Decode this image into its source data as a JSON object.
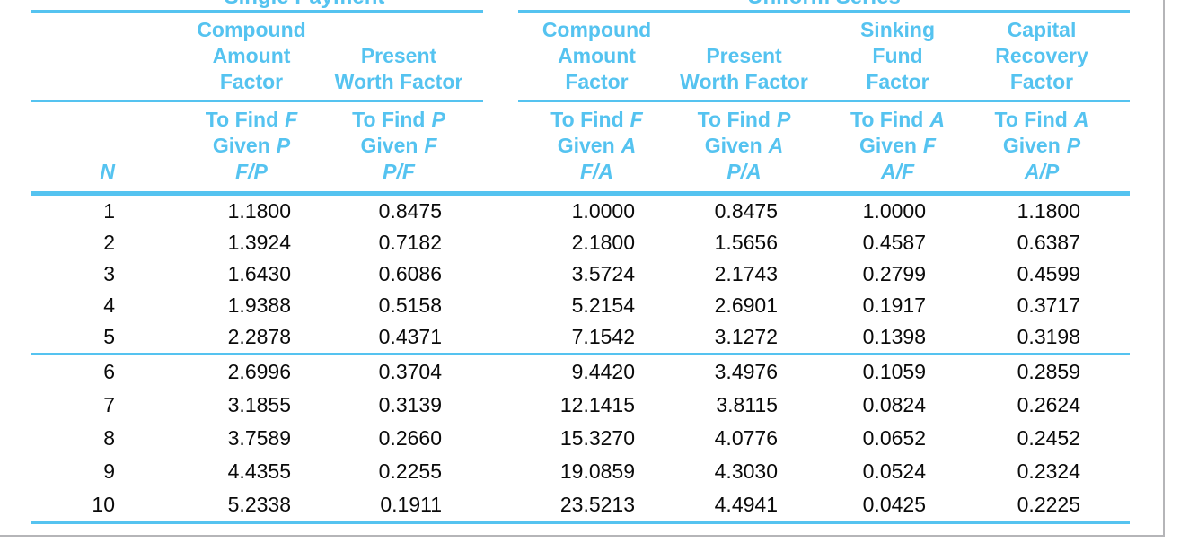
{
  "figure": {
    "group_headers": [
      {
        "label": "Single Payment"
      },
      {
        "label": "Uniform Series"
      }
    ],
    "columns": [
      {
        "id": "n",
        "symbol": "N"
      },
      {
        "id": "fp",
        "name": "Compound\nAmount\nFactor",
        "find_label": "To Find",
        "find_var": "F",
        "given_label": "Given",
        "given_var": "P",
        "symbol": "F/P"
      },
      {
        "id": "pf",
        "name": "Present\nWorth Factor",
        "find_label": "To Find",
        "find_var": "P",
        "given_label": "Given",
        "given_var": "F",
        "symbol": "P/F"
      },
      {
        "id": "fa",
        "name": "Compound\nAmount\nFactor",
        "find_label": "To Find",
        "find_var": "F",
        "given_label": "Given",
        "given_var": "A",
        "symbol": "F/A"
      },
      {
        "id": "pa",
        "name": "Present\nWorth Factor",
        "find_label": "To Find",
        "find_var": "P",
        "given_label": "Given",
        "given_var": "A",
        "symbol": "P/A"
      },
      {
        "id": "af",
        "name": "Sinking\nFund\nFactor",
        "find_label": "To Find",
        "find_var": "A",
        "given_label": "Given",
        "given_var": "F",
        "symbol": "A/F"
      },
      {
        "id": "ap",
        "name": "Capital\nRecovery\nFactor",
        "find_label": "To Find",
        "find_var": "A",
        "given_label": "Given",
        "given_var": "P",
        "symbol": "A/P"
      }
    ],
    "rows": [
      {
        "n": "1",
        "fp": "1.1800",
        "pf": "0.8475",
        "fa": "1.0000",
        "pa": "0.8475",
        "af": "1.0000",
        "ap": "1.1800"
      },
      {
        "n": "2",
        "fp": "1.3924",
        "pf": "0.7182",
        "fa": "2.1800",
        "pa": "1.5656",
        "af": "0.4587",
        "ap": "0.6387"
      },
      {
        "n": "3",
        "fp": "1.6430",
        "pf": "0.6086",
        "fa": "3.5724",
        "pa": "2.1743",
        "af": "0.2799",
        "ap": "0.4599"
      },
      {
        "n": "4",
        "fp": "1.9388",
        "pf": "0.5158",
        "fa": "5.2154",
        "pa": "2.6901",
        "af": "0.1917",
        "ap": "0.3717"
      },
      {
        "n": "5",
        "fp": "2.2878",
        "pf": "0.4371",
        "fa": "7.1542",
        "pa": "3.1272",
        "af": "0.1398",
        "ap": "0.3198"
      },
      {
        "n": "6",
        "fp": "2.6996",
        "pf": "0.3704",
        "fa": "9.4420",
        "pa": "3.4976",
        "af": "0.1059",
        "ap": "0.2859"
      },
      {
        "n": "7",
        "fp": "3.1855",
        "pf": "0.3139",
        "fa": "12.1415",
        "pa": "3.8115",
        "af": "0.0824",
        "ap": "0.2624"
      },
      {
        "n": "8",
        "fp": "3.7589",
        "pf": "0.2660",
        "fa": "15.3270",
        "pa": "4.0776",
        "af": "0.0652",
        "ap": "0.2452"
      },
      {
        "n": "9",
        "fp": "4.4355",
        "pf": "0.2255",
        "fa": "19.0859",
        "pa": "4.3030",
        "af": "0.0524",
        "ap": "0.2324"
      },
      {
        "n": "10",
        "fp": "5.2338",
        "pf": "0.1911",
        "fa": "23.5213",
        "pa": "4.4941",
        "af": "0.0425",
        "ap": "0.2225"
      }
    ]
  },
  "colors": {
    "accent_blue": "#55C3F0",
    "frame_grey": "#B5B5B8",
    "data_text": "#0A0A0A"
  }
}
